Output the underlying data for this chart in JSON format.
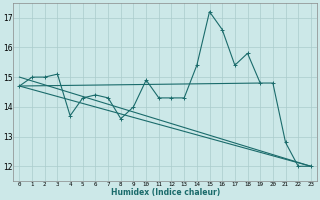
{
  "xlabel": "Humidex (Indice chaleur)",
  "ylabel": "",
  "background_color": "#cce8e8",
  "grid_color": "#aacccc",
  "line_color": "#1a6b6b",
  "x_ticks": [
    0,
    1,
    2,
    3,
    4,
    5,
    6,
    7,
    8,
    9,
    10,
    11,
    12,
    13,
    14,
    15,
    16,
    17,
    18,
    19,
    20,
    21,
    22,
    23
  ],
  "ylim": [
    11.5,
    17.5
  ],
  "yticks": [
    12,
    13,
    14,
    15,
    16,
    17
  ],
  "series": [
    {
      "x": [
        0,
        1,
        2,
        3,
        4,
        5,
        6,
        7,
        8,
        9,
        10,
        11,
        12,
        13,
        14,
        15,
        16,
        17,
        18,
        19,
        20,
        21,
        22,
        23
      ],
      "y": [
        14.7,
        15.0,
        15.0,
        15.1,
        13.7,
        14.3,
        14.4,
        14.3,
        13.6,
        14.0,
        14.9,
        14.3,
        14.3,
        14.3,
        15.4,
        17.2,
        16.6,
        15.4,
        15.8,
        14.8,
        14.8,
        12.8,
        12.0,
        12.0
      ]
    },
    {
      "x": [
        0,
        23
      ],
      "y": [
        14.7,
        12.0
      ]
    },
    {
      "x": [
        0,
        23
      ],
      "y": [
        15.0,
        12.0
      ]
    },
    {
      "x": [
        0,
        19
      ],
      "y": [
        14.7,
        14.8
      ]
    }
  ]
}
